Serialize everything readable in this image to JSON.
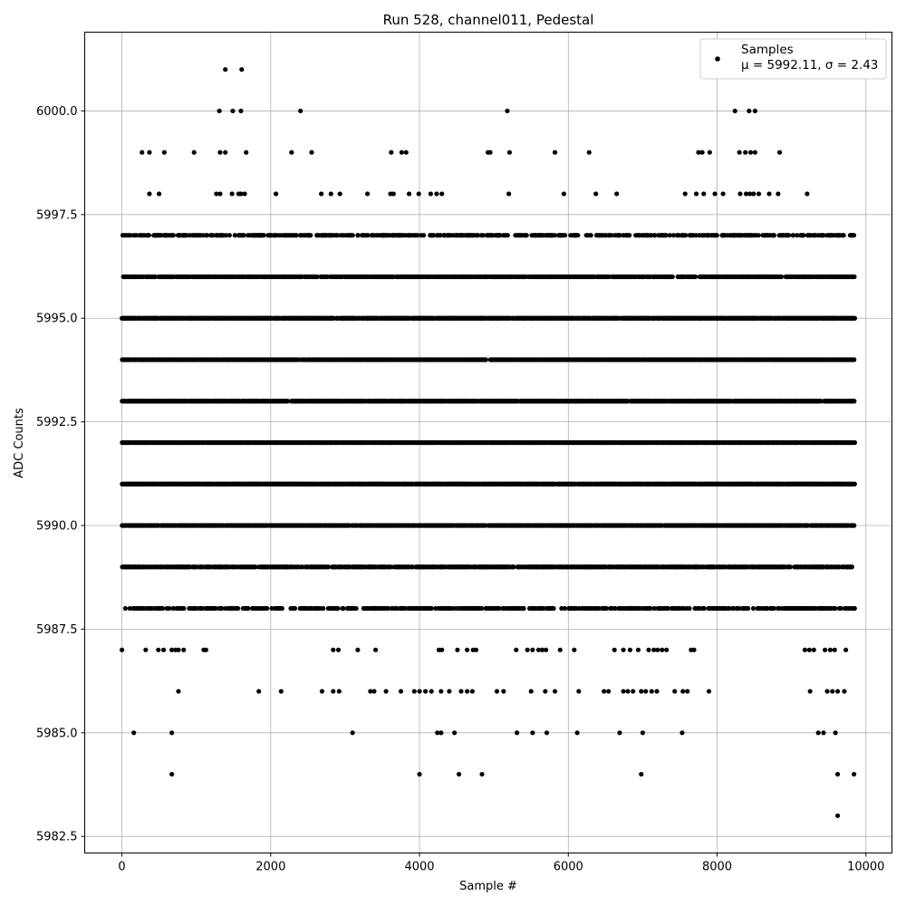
{
  "chart_data": {
    "type": "scatter",
    "title": "Run 528, channel011, Pedestal",
    "xlabel": "Sample #",
    "ylabel": "ADC Counts",
    "xlim": [
      -500,
      10350
    ],
    "ylim": [
      5982.1,
      6001.9
    ],
    "xticks": [
      0,
      2000,
      4000,
      6000,
      8000,
      10000
    ],
    "yticks": [
      5982.5,
      5985.0,
      5987.5,
      5990.0,
      5992.5,
      5995.0,
      5997.5,
      6000.0
    ],
    "xtick_labels": [
      "0",
      "2000",
      "4000",
      "6000",
      "8000",
      "10000"
    ],
    "ytick_labels": [
      "5982.5",
      "5985.0",
      "5987.5",
      "5990.0",
      "5992.5",
      "5995.0",
      "5997.5",
      "6000.0"
    ],
    "grid": true,
    "legend": {
      "placement": "top-right",
      "entries": [
        {
          "label": "Samples",
          "sublabel": "μ = 5992.11, σ = 2.43"
        }
      ]
    },
    "marker_color": "#000000",
    "n_samples": 9850,
    "series": [
      {
        "name": "Samples",
        "band_levels": [
          5988,
          5989,
          5990,
          5991,
          5992,
          5993,
          5994,
          5995,
          5996,
          5997
        ],
        "outliers": [
          {
            "x": 1390,
            "y": 6001
          },
          {
            "x": 1610,
            "y": 6001
          },
          {
            "x": 1310,
            "y": 6000
          },
          {
            "x": 1490,
            "y": 6000
          },
          {
            "x": 1600,
            "y": 6000
          },
          {
            "x": 2400,
            "y": 6000
          },
          {
            "x": 5180,
            "y": 6000
          },
          {
            "x": 8240,
            "y": 6000
          },
          {
            "x": 8430,
            "y": 6000
          },
          {
            "x": 8510,
            "y": 6000
          },
          {
            "x": 270,
            "y": 5999
          },
          {
            "x": 370,
            "y": 5999
          },
          {
            "x": 570,
            "y": 5999
          },
          {
            "x": 970,
            "y": 5999
          },
          {
            "x": 1320,
            "y": 5999
          },
          {
            "x": 1390,
            "y": 5999
          },
          {
            "x": 1670,
            "y": 5999
          },
          {
            "x": 2280,
            "y": 5999
          },
          {
            "x": 2550,
            "y": 5999
          },
          {
            "x": 3620,
            "y": 5999
          },
          {
            "x": 3760,
            "y": 5999
          },
          {
            "x": 3820,
            "y": 5999
          },
          {
            "x": 4920,
            "y": 5999
          },
          {
            "x": 4950,
            "y": 5999
          },
          {
            "x": 5210,
            "y": 5999
          },
          {
            "x": 5820,
            "y": 5999
          },
          {
            "x": 6280,
            "y": 5999
          },
          {
            "x": 7750,
            "y": 5999
          },
          {
            "x": 7800,
            "y": 5999
          },
          {
            "x": 7900,
            "y": 5999
          },
          {
            "x": 8300,
            "y": 5999
          },
          {
            "x": 8380,
            "y": 5999
          },
          {
            "x": 8450,
            "y": 5999
          },
          {
            "x": 8510,
            "y": 5999
          },
          {
            "x": 8840,
            "y": 5999
          },
          {
            "x": 370,
            "y": 5998
          },
          {
            "x": 500,
            "y": 5998
          },
          {
            "x": 1270,
            "y": 5998
          },
          {
            "x": 1320,
            "y": 5998
          },
          {
            "x": 1480,
            "y": 5998
          },
          {
            "x": 1570,
            "y": 5998
          },
          {
            "x": 1600,
            "y": 5998
          },
          {
            "x": 1650,
            "y": 5998
          },
          {
            "x": 2070,
            "y": 5998
          },
          {
            "x": 2680,
            "y": 5998
          },
          {
            "x": 2810,
            "y": 5998
          },
          {
            "x": 2930,
            "y": 5998
          },
          {
            "x": 3300,
            "y": 5998
          },
          {
            "x": 3610,
            "y": 5998
          },
          {
            "x": 3650,
            "y": 5998
          },
          {
            "x": 3860,
            "y": 5998
          },
          {
            "x": 3990,
            "y": 5998
          },
          {
            "x": 4150,
            "y": 5998
          },
          {
            "x": 4230,
            "y": 5998
          },
          {
            "x": 4300,
            "y": 5998
          },
          {
            "x": 5200,
            "y": 5998
          },
          {
            "x": 5940,
            "y": 5998
          },
          {
            "x": 6370,
            "y": 5998
          },
          {
            "x": 6650,
            "y": 5998
          },
          {
            "x": 7570,
            "y": 5998
          },
          {
            "x": 7720,
            "y": 5998
          },
          {
            "x": 7820,
            "y": 5998
          },
          {
            "x": 7970,
            "y": 5998
          },
          {
            "x": 8080,
            "y": 5998
          },
          {
            "x": 8310,
            "y": 5998
          },
          {
            "x": 8390,
            "y": 5998
          },
          {
            "x": 8440,
            "y": 5998
          },
          {
            "x": 8490,
            "y": 5998
          },
          {
            "x": 8560,
            "y": 5998
          },
          {
            "x": 8700,
            "y": 5998
          },
          {
            "x": 8820,
            "y": 5998
          },
          {
            "x": 9210,
            "y": 5998
          },
          {
            "x": 0,
            "y": 5987
          },
          {
            "x": 320,
            "y": 5987
          },
          {
            "x": 490,
            "y": 5987
          },
          {
            "x": 560,
            "y": 5987
          },
          {
            "x": 670,
            "y": 5987
          },
          {
            "x": 720,
            "y": 5987
          },
          {
            "x": 760,
            "y": 5987
          },
          {
            "x": 830,
            "y": 5987
          },
          {
            "x": 1100,
            "y": 5987
          },
          {
            "x": 1130,
            "y": 5987
          },
          {
            "x": 2840,
            "y": 5987
          },
          {
            "x": 2910,
            "y": 5987
          },
          {
            "x": 3170,
            "y": 5987
          },
          {
            "x": 3410,
            "y": 5987
          },
          {
            "x": 4260,
            "y": 5987
          },
          {
            "x": 4300,
            "y": 5987
          },
          {
            "x": 4510,
            "y": 5987
          },
          {
            "x": 4640,
            "y": 5987
          },
          {
            "x": 4720,
            "y": 5987
          },
          {
            "x": 4760,
            "y": 5987
          },
          {
            "x": 5300,
            "y": 5987
          },
          {
            "x": 5450,
            "y": 5987
          },
          {
            "x": 5520,
            "y": 5987
          },
          {
            "x": 5600,
            "y": 5987
          },
          {
            "x": 5650,
            "y": 5987
          },
          {
            "x": 5700,
            "y": 5987
          },
          {
            "x": 5890,
            "y": 5987
          },
          {
            "x": 6080,
            "y": 5987
          },
          {
            "x": 6620,
            "y": 5987
          },
          {
            "x": 6740,
            "y": 5987
          },
          {
            "x": 6830,
            "y": 5987
          },
          {
            "x": 6940,
            "y": 5987
          },
          {
            "x": 7080,
            "y": 5987
          },
          {
            "x": 7150,
            "y": 5987
          },
          {
            "x": 7200,
            "y": 5987
          },
          {
            "x": 7260,
            "y": 5987
          },
          {
            "x": 7320,
            "y": 5987
          },
          {
            "x": 7650,
            "y": 5987
          },
          {
            "x": 7690,
            "y": 5987
          },
          {
            "x": 9180,
            "y": 5987
          },
          {
            "x": 9240,
            "y": 5987
          },
          {
            "x": 9300,
            "y": 5987
          },
          {
            "x": 9450,
            "y": 5987
          },
          {
            "x": 9520,
            "y": 5987
          },
          {
            "x": 9580,
            "y": 5987
          },
          {
            "x": 9730,
            "y": 5987
          },
          {
            "x": 760,
            "y": 5986
          },
          {
            "x": 1840,
            "y": 5986
          },
          {
            "x": 2140,
            "y": 5986
          },
          {
            "x": 2690,
            "y": 5986
          },
          {
            "x": 2840,
            "y": 5986
          },
          {
            "x": 2920,
            "y": 5986
          },
          {
            "x": 3340,
            "y": 5986
          },
          {
            "x": 3390,
            "y": 5986
          },
          {
            "x": 3550,
            "y": 5986
          },
          {
            "x": 3750,
            "y": 5986
          },
          {
            "x": 3930,
            "y": 5986
          },
          {
            "x": 4000,
            "y": 5986
          },
          {
            "x": 4080,
            "y": 5986
          },
          {
            "x": 4160,
            "y": 5986
          },
          {
            "x": 4290,
            "y": 5986
          },
          {
            "x": 4400,
            "y": 5986
          },
          {
            "x": 4560,
            "y": 5986
          },
          {
            "x": 4640,
            "y": 5986
          },
          {
            "x": 4710,
            "y": 5986
          },
          {
            "x": 5040,
            "y": 5986
          },
          {
            "x": 5130,
            "y": 5986
          },
          {
            "x": 5500,
            "y": 5986
          },
          {
            "x": 5690,
            "y": 5986
          },
          {
            "x": 5820,
            "y": 5986
          },
          {
            "x": 6140,
            "y": 5986
          },
          {
            "x": 6480,
            "y": 5986
          },
          {
            "x": 6540,
            "y": 5986
          },
          {
            "x": 6740,
            "y": 5986
          },
          {
            "x": 6800,
            "y": 5986
          },
          {
            "x": 6870,
            "y": 5986
          },
          {
            "x": 6980,
            "y": 5986
          },
          {
            "x": 7040,
            "y": 5986
          },
          {
            "x": 7120,
            "y": 5986
          },
          {
            "x": 7190,
            "y": 5986
          },
          {
            "x": 7430,
            "y": 5986
          },
          {
            "x": 7540,
            "y": 5986
          },
          {
            "x": 7600,
            "y": 5986
          },
          {
            "x": 7890,
            "y": 5986
          },
          {
            "x": 9250,
            "y": 5986
          },
          {
            "x": 9480,
            "y": 5986
          },
          {
            "x": 9550,
            "y": 5986
          },
          {
            "x": 9620,
            "y": 5986
          },
          {
            "x": 9710,
            "y": 5986
          },
          {
            "x": 160,
            "y": 5985
          },
          {
            "x": 670,
            "y": 5985
          },
          {
            "x": 3100,
            "y": 5985
          },
          {
            "x": 4240,
            "y": 5985
          },
          {
            "x": 4290,
            "y": 5985
          },
          {
            "x": 4470,
            "y": 5985
          },
          {
            "x": 5310,
            "y": 5985
          },
          {
            "x": 5520,
            "y": 5985
          },
          {
            "x": 5710,
            "y": 5985
          },
          {
            "x": 6120,
            "y": 5985
          },
          {
            "x": 6690,
            "y": 5985
          },
          {
            "x": 7000,
            "y": 5985
          },
          {
            "x": 7530,
            "y": 5985
          },
          {
            "x": 9360,
            "y": 5985
          },
          {
            "x": 9430,
            "y": 5985
          },
          {
            "x": 9590,
            "y": 5985
          },
          {
            "x": 670,
            "y": 5984
          },
          {
            "x": 4000,
            "y": 5984
          },
          {
            "x": 4530,
            "y": 5984
          },
          {
            "x": 4840,
            "y": 5984
          },
          {
            "x": 6980,
            "y": 5984
          },
          {
            "x": 9620,
            "y": 5984
          },
          {
            "x": 9840,
            "y": 5984
          },
          {
            "x": 9620,
            "y": 5983
          }
        ]
      }
    ]
  }
}
